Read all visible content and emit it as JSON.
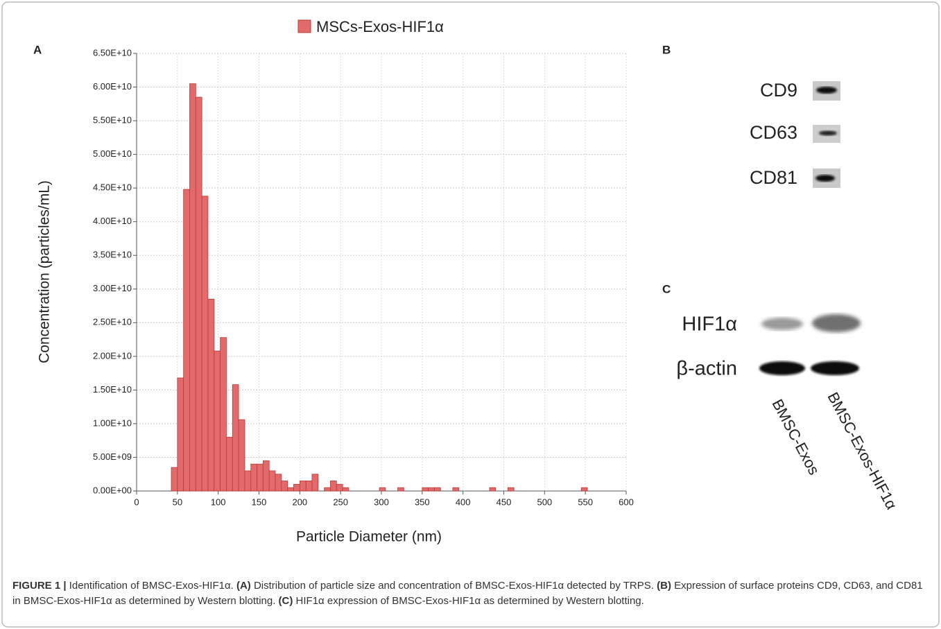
{
  "chart_data": {
    "type": "histogram",
    "legend_title": "MSCs-Exos-HIF1α",
    "x_label": "Particle Diameter (nm)",
    "y_label": "Concentration (particles/mL)",
    "color": "#e36a6a",
    "edge_color": "#b83a3a",
    "grid": true,
    "bins": [
      42.5,
      50,
      57.5,
      65,
      72.5,
      80,
      87.5,
      95,
      102.5,
      110,
      117.5,
      125,
      132.5,
      140,
      147.5,
      155,
      162.5,
      170,
      177.5,
      185,
      192.5,
      200,
      207.5,
      215,
      222.5,
      230,
      237.5,
      245,
      252.5,
      260,
      267.5,
      275,
      282.5,
      290,
      297.5,
      305,
      312.5,
      320,
      327.5,
      335,
      342.5,
      350,
      357.5,
      365,
      372.5,
      380,
      387.5,
      395,
      402.5,
      410,
      417.5,
      425,
      432.5,
      440,
      447.5,
      455,
      462.5,
      470,
      477.5,
      485,
      492.5,
      500,
      507.5,
      515,
      522.5,
      530,
      537.5,
      545,
      552.5
    ],
    "values": [
      3500000000,
      16800000000,
      44800000000,
      60500000000,
      58500000000,
      43800000000,
      28500000000,
      20800000000,
      22800000000,
      8000000000,
      15800000000,
      10600000000,
      3000000000,
      4000000000,
      4000000000,
      4500000000,
      3000000000,
      2500000000,
      1500000000,
      500000000,
      1000000000,
      1500000000,
      1500000000,
      2500000000,
      0,
      500000000,
      1500000000,
      1000000000,
      500000000,
      0,
      0,
      0,
      0,
      0,
      500000000,
      0,
      0,
      500000000,
      0,
      0,
      0,
      500000000,
      500000000,
      500000000,
      0,
      0,
      500000000,
      0,
      0,
      0,
      0,
      0,
      500000000,
      0,
      0,
      500000000,
      0,
      0,
      0,
      0,
      0,
      0,
      0,
      0,
      0,
      0,
      0,
      500000000
    ],
    "xlim": [
      0,
      600
    ],
    "xticks": [
      0,
      50,
      100,
      150,
      200,
      250,
      300,
      350,
      400,
      450,
      500,
      550,
      600
    ],
    "ylim": [
      0,
      65000000000
    ],
    "yticks": [
      {
        "value": 0,
        "label": "0.00E+00"
      },
      {
        "value": 5000000000,
        "label": "5.00E+09"
      },
      {
        "value": 10000000000,
        "label": "1.00E+10"
      },
      {
        "value": 15000000000,
        "label": "1.50E+10"
      },
      {
        "value": 20000000000,
        "label": "2.00E+10"
      },
      {
        "value": 25000000000,
        "label": "2.50E+10"
      },
      {
        "value": 30000000000,
        "label": "3.00E+10"
      },
      {
        "value": 35000000000,
        "label": "3.50E+10"
      },
      {
        "value": 40000000000,
        "label": "4.00E+10"
      },
      {
        "value": 45000000000,
        "label": "4.50E+10"
      },
      {
        "value": 50000000000,
        "label": "5.00E+10"
      },
      {
        "value": 55000000000,
        "label": "5.50E+10"
      },
      {
        "value": 60000000000,
        "label": "6.00E+10"
      },
      {
        "value": 65000000000,
        "label": "6.50E+10"
      }
    ]
  },
  "panel_labels": [
    "A",
    "B",
    "C"
  ],
  "blot_b": {
    "rows": [
      "CD9",
      "CD63",
      "CD81"
    ]
  },
  "blot_c": {
    "rows": [
      "HIF1α",
      "β-actin"
    ],
    "lanes": [
      "BMSC-Exos",
      "BMSC-Exos-HIF1α"
    ]
  },
  "caption": [
    {
      "text": "FIGURE 1 |",
      "bold": true
    },
    {
      "text": " Identification of BMSC-Exos-HIF1α. ",
      "bold": false
    },
    {
      "text": "(A)",
      "bold": true
    },
    {
      "text": " Distribution of particle size and concentration of BMSC-Exos-HIF1α detected by TRPS. ",
      "bold": false
    },
    {
      "text": "(B)",
      "bold": true
    },
    {
      "text": " Expression of surface proteins CD9, CD63, and CD81 in BMSC-Exos-HIF1α as determined by Western blotting. ",
      "bold": false
    },
    {
      "text": "(C)",
      "bold": true
    },
    {
      "text": " HIF1α expression of BMSC-Exos-HIF1α as determined by Western blotting.",
      "bold": false
    }
  ]
}
